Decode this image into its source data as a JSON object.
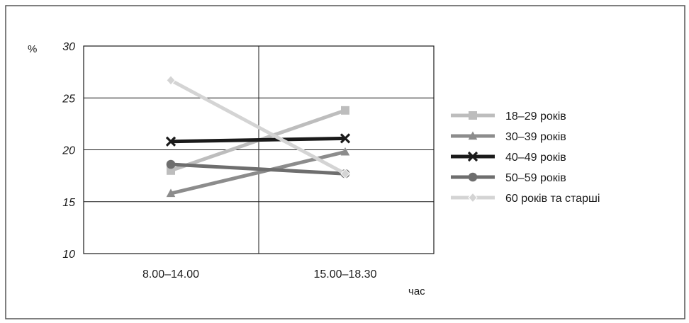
{
  "chart_data": {
    "type": "line",
    "ylabel": "%",
    "xlabel": "час",
    "ylim": [
      10,
      30
    ],
    "yticks": [
      10,
      15,
      20,
      25,
      30
    ],
    "categories": [
      "8.00–14.00",
      "15.00–18.30"
    ],
    "grid": true,
    "legend_position": "right",
    "series": [
      {
        "name": "18–29 років",
        "values": [
          18.0,
          23.8
        ],
        "color": "#bdbdbd",
        "marker": "square"
      },
      {
        "name": "30–39 років",
        "values": [
          15.8,
          19.8
        ],
        "color": "#8c8c8c",
        "marker": "triangle"
      },
      {
        "name": "40–49 років",
        "values": [
          20.8,
          21.1
        ],
        "color": "#1a1a1a",
        "marker": "x"
      },
      {
        "name": "50–59 років",
        "values": [
          18.6,
          17.7
        ],
        "color": "#6e6e6e",
        "marker": "circle"
      },
      {
        "name": "60 років та старші",
        "values": [
          26.7,
          17.7
        ],
        "color": "#d4d4d4",
        "marker": "diamond"
      }
    ]
  }
}
